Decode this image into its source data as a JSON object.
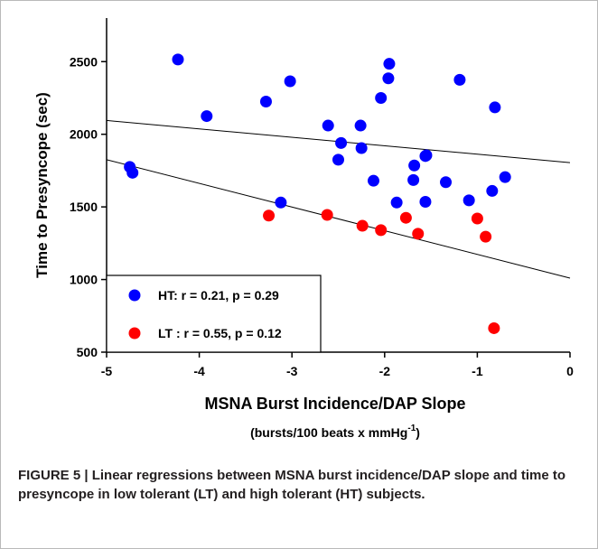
{
  "caption": "FIGURE 5 | Linear regressions between MSNA burst incidence/DAP slope and time to presyncope in low tolerant (LT) and high tolerant (HT) subjects.",
  "colors": {
    "ht": "#0000ff",
    "lt": "#ff0000",
    "axis": "#000000",
    "regression_line": "#000000"
  },
  "chart_data": {
    "type": "scatter",
    "xlabel": "MSNA Burst Incidence/DAP Slope",
    "xlabel_units": "(bursts/100 beats x mmHg",
    "xlabel_units_sup": "-1",
    "xlabel_units_end": ")",
    "ylabel": "Time to Presyncope (sec)",
    "xlim": [
      -5,
      0
    ],
    "ylim": [
      500,
      2800
    ],
    "xticks": [
      -5,
      -4,
      -3,
      -2,
      -1,
      0
    ],
    "xtick_labels": [
      "-5",
      "-4",
      "-3",
      "-2",
      "-1",
      "0"
    ],
    "yticks": [
      500,
      1000,
      1500,
      2000,
      2500
    ],
    "ytick_labels": [
      "500",
      "1000",
      "1500",
      "2000",
      "2500"
    ],
    "grid": false,
    "legend_position": "bottom-left",
    "series": [
      {
        "name": "HT: r = 0.21, p = 0.29",
        "color": "#0000ff",
        "points": [
          [
            -4.23,
            2515
          ],
          [
            -3.92,
            2125
          ],
          [
            -3.28,
            2225
          ],
          [
            -3.02,
            2365
          ],
          [
            -2.61,
            2060
          ],
          [
            -2.47,
            1940
          ],
          [
            -2.5,
            1825
          ],
          [
            -2.26,
            2060
          ],
          [
            -2.25,
            1905
          ],
          [
            -2.04,
            2250
          ],
          [
            -1.96,
            2385
          ],
          [
            -1.95,
            2485
          ],
          [
            -1.19,
            2375
          ],
          [
            -0.81,
            2185
          ],
          [
            -4.75,
            1775
          ],
          [
            -4.72,
            1735
          ],
          [
            -3.12,
            1530
          ],
          [
            -2.12,
            1680
          ],
          [
            -1.87,
            1530
          ],
          [
            -1.69,
            1685
          ],
          [
            -1.68,
            1785
          ],
          [
            -1.56,
            1850
          ],
          [
            -1.55,
            1855
          ],
          [
            -1.56,
            1535
          ],
          [
            -1.34,
            1670
          ],
          [
            -1.09,
            1545
          ],
          [
            -0.84,
            1610
          ],
          [
            -0.7,
            1705
          ]
        ],
        "regression": {
          "x": [
            -5,
            0
          ],
          "y": [
            2095,
            1805
          ]
        }
      },
      {
        "name": "LT : r = 0.55, p = 0.12",
        "color": "#ff0000",
        "points": [
          [
            -3.25,
            1440
          ],
          [
            -2.62,
            1445
          ],
          [
            -2.24,
            1370
          ],
          [
            -2.04,
            1340
          ],
          [
            -1.77,
            1425
          ],
          [
            -1.64,
            1315
          ],
          [
            -1.0,
            1420
          ],
          [
            -0.91,
            1295
          ],
          [
            -0.82,
            665
          ]
        ],
        "regression": {
          "x": [
            -5,
            0
          ],
          "y": [
            1825,
            1010
          ]
        }
      }
    ]
  }
}
